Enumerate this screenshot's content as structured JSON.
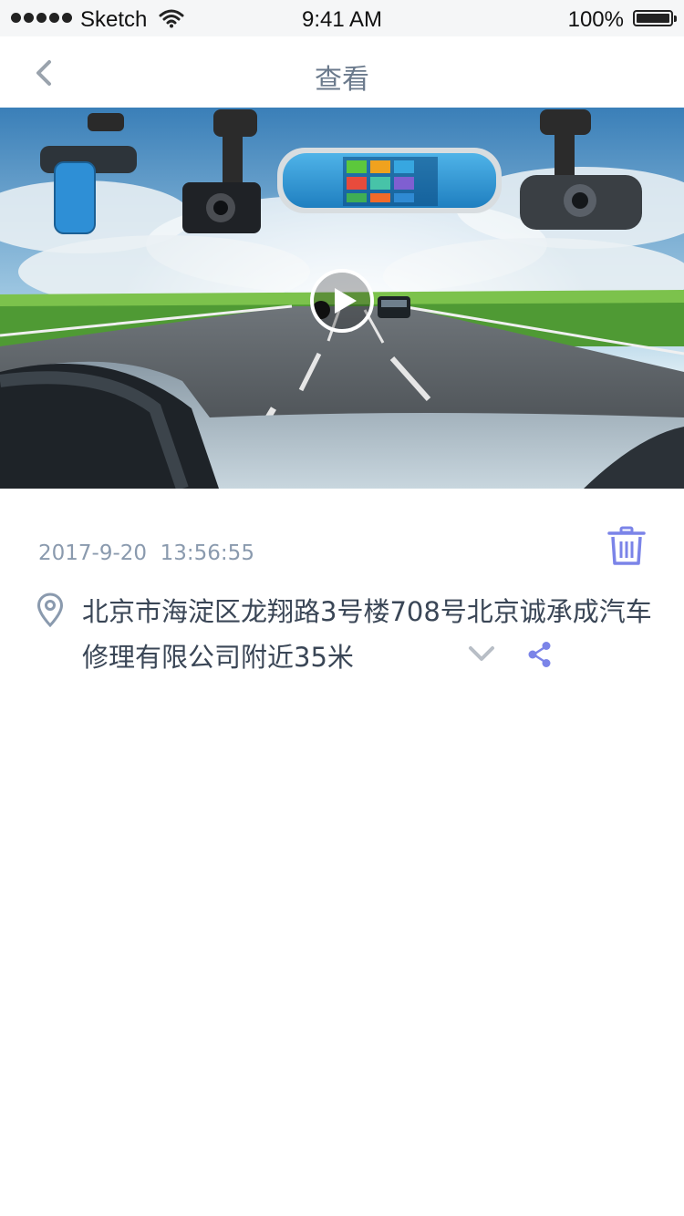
{
  "status_bar": {
    "carrier": "Sketch",
    "time": "9:41 AM",
    "battery": "100%"
  },
  "nav": {
    "title": "查看",
    "back_icon": "chevron-left-icon"
  },
  "video": {
    "description_icon": "play-icon"
  },
  "record": {
    "datetime": "2017-9-20  13:56:55",
    "address": "北京市海淀区龙翔路3号楼708号北京诚承成汽车修理有限公司附近35米"
  },
  "colors": {
    "accent": "#7b84e8",
    "nav_title": "#6b7a8c",
    "timestamp": "#8a9aae",
    "address_text": "#3a4656"
  }
}
